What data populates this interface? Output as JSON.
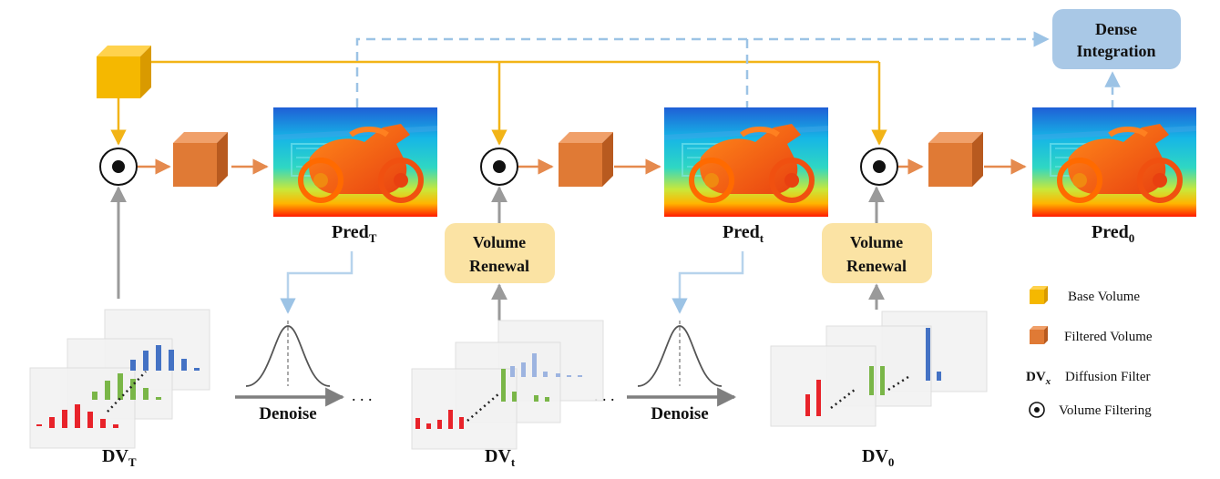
{
  "colors": {
    "base_volume": "#f5b800",
    "filtered_volume": "#e07a35",
    "base_line": "#f2b417",
    "filtered_arrow": "#e58a4e",
    "renewal_box": "#fbe3a4",
    "dense_box": "#a9c8e6",
    "dashed_line": "#9cc3e5",
    "gray_arrow": "#9a9a9a",
    "dist_red": "#e8232a",
    "dist_green": "#7ab648",
    "dist_blue": "#4472c4"
  },
  "labels": {
    "dense_integration": [
      "Dense",
      "Integration"
    ],
    "volume_renewal": [
      "Volume",
      "Renewal"
    ],
    "pred_T": {
      "base": "Pred",
      "sub": "T"
    },
    "pred_t": {
      "base": "Pred",
      "sub": "t"
    },
    "pred_0": {
      "base": "Pred",
      "sub": "0"
    },
    "dv_T": {
      "base": "DV",
      "sub": "T"
    },
    "dv_t": {
      "base": "DV",
      "sub": "t"
    },
    "dv_0": {
      "base": "DV",
      "sub": "0"
    },
    "denoise": "Denoise",
    "ellipsis": ". . ."
  },
  "legend": {
    "base_volume": "Base Volume",
    "filtered_volume": "Filtered Volume",
    "diffusion_filter_symbol": {
      "base": "DV",
      "sub": "x"
    },
    "diffusion_filter": "Diffusion Filter",
    "volume_filtering": "Volume Filtering"
  }
}
